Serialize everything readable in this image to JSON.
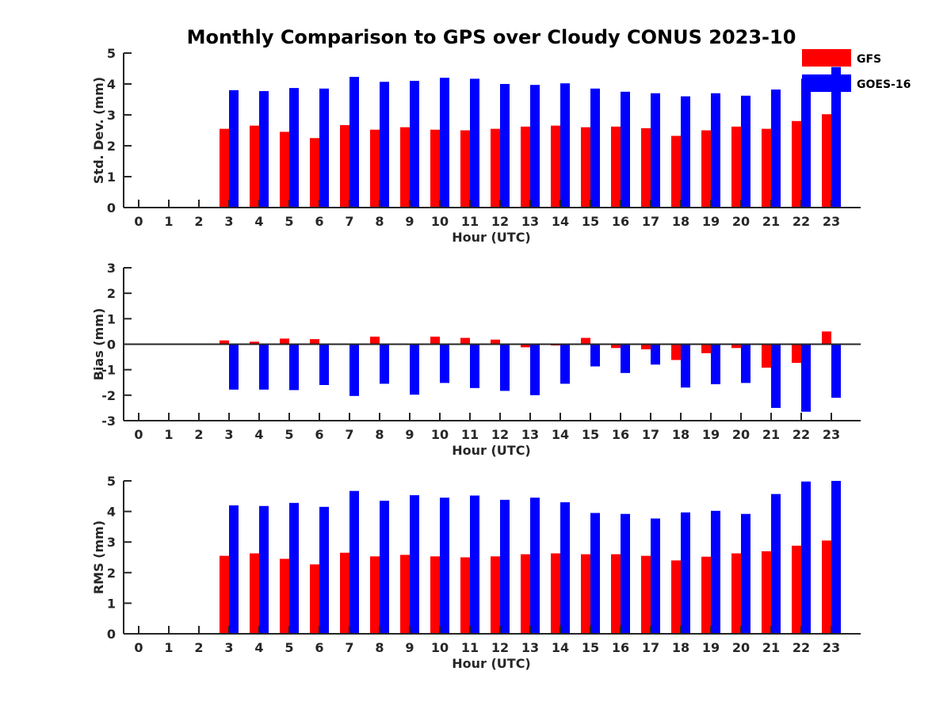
{
  "figure": {
    "title": "Monthly Comparison to GPS over Cloudy CONUS 2023-10"
  },
  "legend": {
    "placement": "top-right",
    "entries": [
      {
        "name": "GFS",
        "color": "#ff0000"
      },
      {
        "name": "GOES-16",
        "color": "#0000ff"
      }
    ]
  },
  "chart_data": [
    {
      "type": "bar",
      "xlabel": "Hour (UTC)",
      "ylabel": "Std. Dev. (mm)",
      "ylim": [
        0,
        5
      ],
      "yticks": [
        0,
        1,
        2,
        3,
        4,
        5
      ],
      "categories": [
        "0",
        "1",
        "2",
        "3",
        "4",
        "5",
        "6",
        "7",
        "8",
        "9",
        "10",
        "11",
        "12",
        "13",
        "14",
        "15",
        "16",
        "17",
        "18",
        "19",
        "20",
        "21",
        "22",
        "23"
      ],
      "series": [
        {
          "name": "GFS",
          "color": "#ff0000",
          "values": [
            null,
            null,
            null,
            2.55,
            2.65,
            2.45,
            2.25,
            2.67,
            2.52,
            2.6,
            2.52,
            2.5,
            2.55,
            2.62,
            2.65,
            2.6,
            2.62,
            2.57,
            2.32,
            2.5,
            2.62,
            2.55,
            2.8,
            3.02
          ]
        },
        {
          "name": "GOES-16",
          "color": "#0000ff",
          "values": [
            null,
            null,
            null,
            3.8,
            3.77,
            3.87,
            3.85,
            4.23,
            4.07,
            4.1,
            4.2,
            4.17,
            4.0,
            3.97,
            4.02,
            3.85,
            3.75,
            3.7,
            3.6,
            3.7,
            3.62,
            3.82,
            4.17,
            4.55
          ]
        }
      ],
      "grid": false
    },
    {
      "type": "bar",
      "xlabel": "Hour (UTC)",
      "ylabel": "Bias (mm)",
      "ylim": [
        -3,
        3
      ],
      "yticks": [
        -3,
        -2,
        -1,
        0,
        1,
        2,
        3
      ],
      "zero_line": true,
      "categories": [
        "0",
        "1",
        "2",
        "3",
        "4",
        "5",
        "6",
        "7",
        "8",
        "9",
        "10",
        "11",
        "12",
        "13",
        "14",
        "15",
        "16",
        "17",
        "18",
        "19",
        "20",
        "21",
        "22",
        "23"
      ],
      "series": [
        {
          "name": "GFS",
          "color": "#ff0000",
          "values": [
            null,
            null,
            null,
            0.15,
            0.1,
            0.22,
            0.2,
            0.0,
            0.3,
            0.0,
            0.3,
            0.25,
            0.18,
            -0.12,
            -0.05,
            0.25,
            -0.15,
            -0.2,
            -0.62,
            -0.35,
            -0.15,
            -0.92,
            -0.73,
            0.5
          ]
        },
        {
          "name": "GOES-16",
          "color": "#0000ff",
          "values": [
            null,
            null,
            null,
            -1.78,
            -1.78,
            -1.8,
            -1.6,
            -2.03,
            -1.55,
            -1.98,
            -1.52,
            -1.72,
            -1.83,
            -2.0,
            -1.55,
            -0.87,
            -1.13,
            -0.8,
            -1.7,
            -1.57,
            -1.52,
            -2.5,
            -2.65,
            -2.1
          ]
        }
      ],
      "grid": false
    },
    {
      "type": "bar",
      "xlabel": "Hour (UTC)",
      "ylabel": "RMS (mm)",
      "ylim": [
        0,
        5
      ],
      "yticks": [
        0,
        1,
        2,
        3,
        4,
        5
      ],
      "categories": [
        "0",
        "1",
        "2",
        "3",
        "4",
        "5",
        "6",
        "7",
        "8",
        "9",
        "10",
        "11",
        "12",
        "13",
        "14",
        "15",
        "16",
        "17",
        "18",
        "19",
        "20",
        "21",
        "22",
        "23"
      ],
      "series": [
        {
          "name": "GFS",
          "color": "#ff0000",
          "values": [
            null,
            null,
            null,
            2.55,
            2.63,
            2.45,
            2.27,
            2.65,
            2.53,
            2.58,
            2.53,
            2.5,
            2.53,
            2.6,
            2.63,
            2.6,
            2.6,
            2.55,
            2.4,
            2.52,
            2.63,
            2.7,
            2.88,
            3.05
          ]
        },
        {
          "name": "GOES-16",
          "color": "#0000ff",
          "values": [
            null,
            null,
            null,
            4.2,
            4.18,
            4.28,
            4.15,
            4.67,
            4.35,
            4.53,
            4.45,
            4.52,
            4.38,
            4.45,
            4.3,
            3.95,
            3.92,
            3.77,
            3.97,
            4.02,
            3.92,
            4.57,
            4.98,
            5.0
          ]
        }
      ],
      "grid": false
    }
  ]
}
